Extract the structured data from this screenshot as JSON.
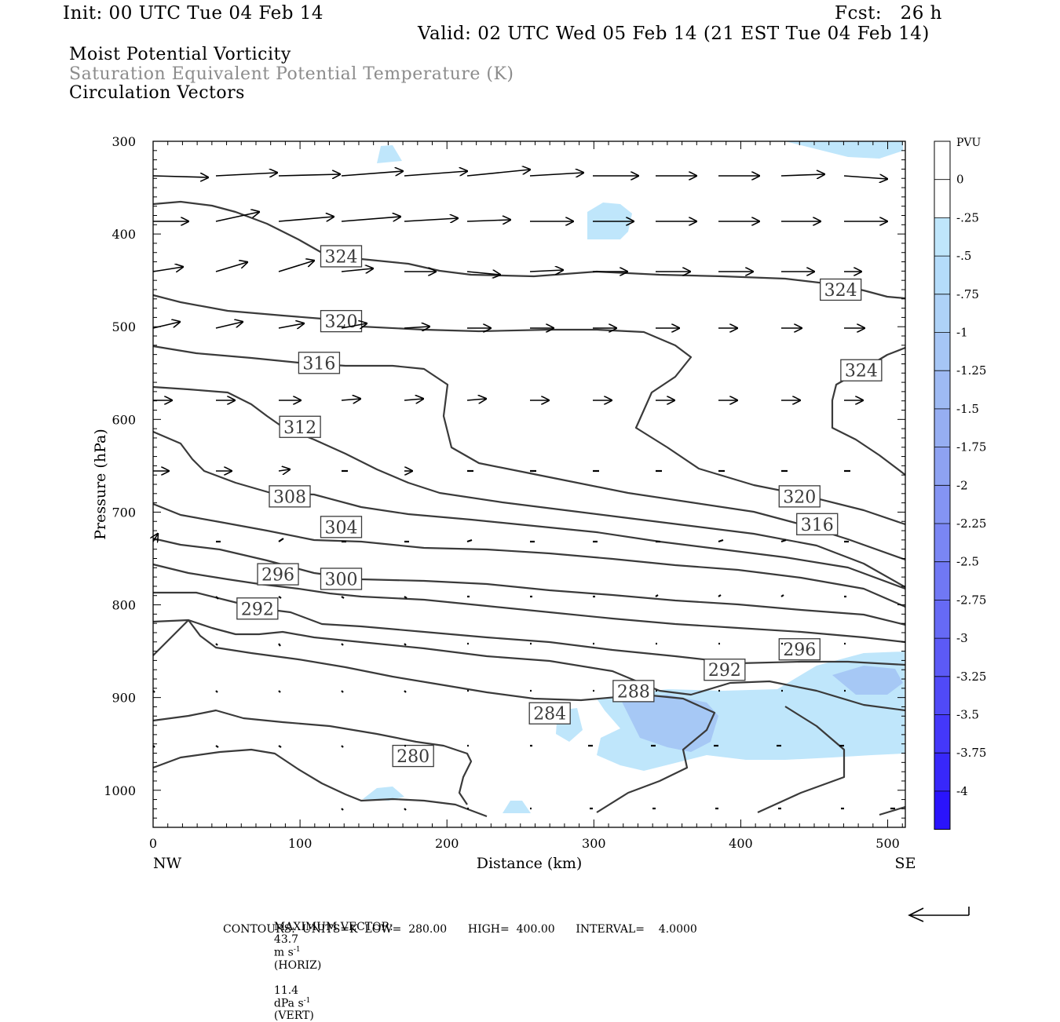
{
  "header": {
    "init": "Init: 00 UTC Tue 04 Feb 14",
    "fcst": "Fcst:   26 h",
    "valid": "Valid: 02 UTC Wed 05 Feb 14 (21 EST Tue 04 Feb 14)"
  },
  "titles": {
    "line1": "Moist Potential Vorticity",
    "line2": "Saturation Equivalent Potential Temperature (K)",
    "line3": "Circulation Vectors"
  },
  "footer": {
    "max_vector_label": "MAXIMUM VECTOR:",
    "horiz_value": "43.7",
    "horiz_unit": "m s",
    "horiz_exp": "-1",
    "horiz_tag": "(HORIZ)",
    "vert_value": "11.4",
    "vert_unit": "dPa s",
    "vert_exp": "-1",
    "vert_tag": "(VERT)",
    "contours": "CONTOURS:  UNITS=K  LOW=  280.00      HIGH=  400.00      INTERVAL=    4.0000"
  },
  "colors": {
    "contour": "#3a3a3a",
    "arrow": "#000000",
    "pv_light": "#bfe6fb",
    "pv_mid": "#a6c8f5"
  },
  "chart_data": {
    "type": "contour",
    "xlabel": "Distance (km)",
    "ylabel": "Pressure (hPa)",
    "xlim": [
      0,
      512
    ],
    "ylim": [
      1040,
      300
    ],
    "x_ticks": [
      0,
      100,
      200,
      300,
      400,
      500
    ],
    "y_ticks": [
      300,
      400,
      500,
      600,
      700,
      800,
      900,
      1000
    ],
    "x_end_labels": {
      "left": "NW",
      "right": "SE"
    },
    "contour_labels": [
      {
        "value": "324",
        "x": 128,
        "p": 424
      },
      {
        "value": "324",
        "x": 468,
        "p": 460
      },
      {
        "value": "324",
        "x": 482,
        "p": 547
      },
      {
        "value": "320",
        "x": 128,
        "p": 494
      },
      {
        "value": "320",
        "x": 440,
        "p": 683
      },
      {
        "value": "316",
        "x": 113,
        "p": 539
      },
      {
        "value": "316",
        "x": 452,
        "p": 713
      },
      {
        "value": "312",
        "x": 100,
        "p": 608
      },
      {
        "value": "308",
        "x": 93,
        "p": 683
      },
      {
        "value": "304",
        "x": 128,
        "p": 716
      },
      {
        "value": "300",
        "x": 128,
        "p": 772
      },
      {
        "value": "296",
        "x": 85,
        "p": 767
      },
      {
        "value": "296",
        "x": 440,
        "p": 848
      },
      {
        "value": "292",
        "x": 71,
        "p": 804
      },
      {
        "value": "292",
        "x": 389,
        "p": 870
      },
      {
        "value": "288",
        "x": 327,
        "p": 893
      },
      {
        "value": "284",
        "x": 270,
        "p": 917
      },
      {
        "value": "280",
        "x": 177,
        "p": 963
      }
    ],
    "colorbar": {
      "unit": "PVU",
      "labels": [
        "0",
        "-.25",
        "-.5",
        "-.75",
        "-1",
        "-1.25",
        "-1.5",
        "-1.75",
        "-2",
        "-2.25",
        "-2.5",
        "-2.75",
        "-3",
        "-3.25",
        "-3.5",
        "-3.75",
        "-4"
      ],
      "colors": [
        "#ffffff",
        "#ffffff",
        "#bfe6fb",
        "#b4dcfa",
        "#aed2f7",
        "#a6c6f5",
        "#9ebaf3",
        "#96aef2",
        "#8ea2f2",
        "#8494f3",
        "#7a86f4",
        "#7078f4",
        "#666af5",
        "#5c5af6",
        "#504af7",
        "#4438f9",
        "#3828fa",
        "#2a14fc"
      ]
    }
  }
}
